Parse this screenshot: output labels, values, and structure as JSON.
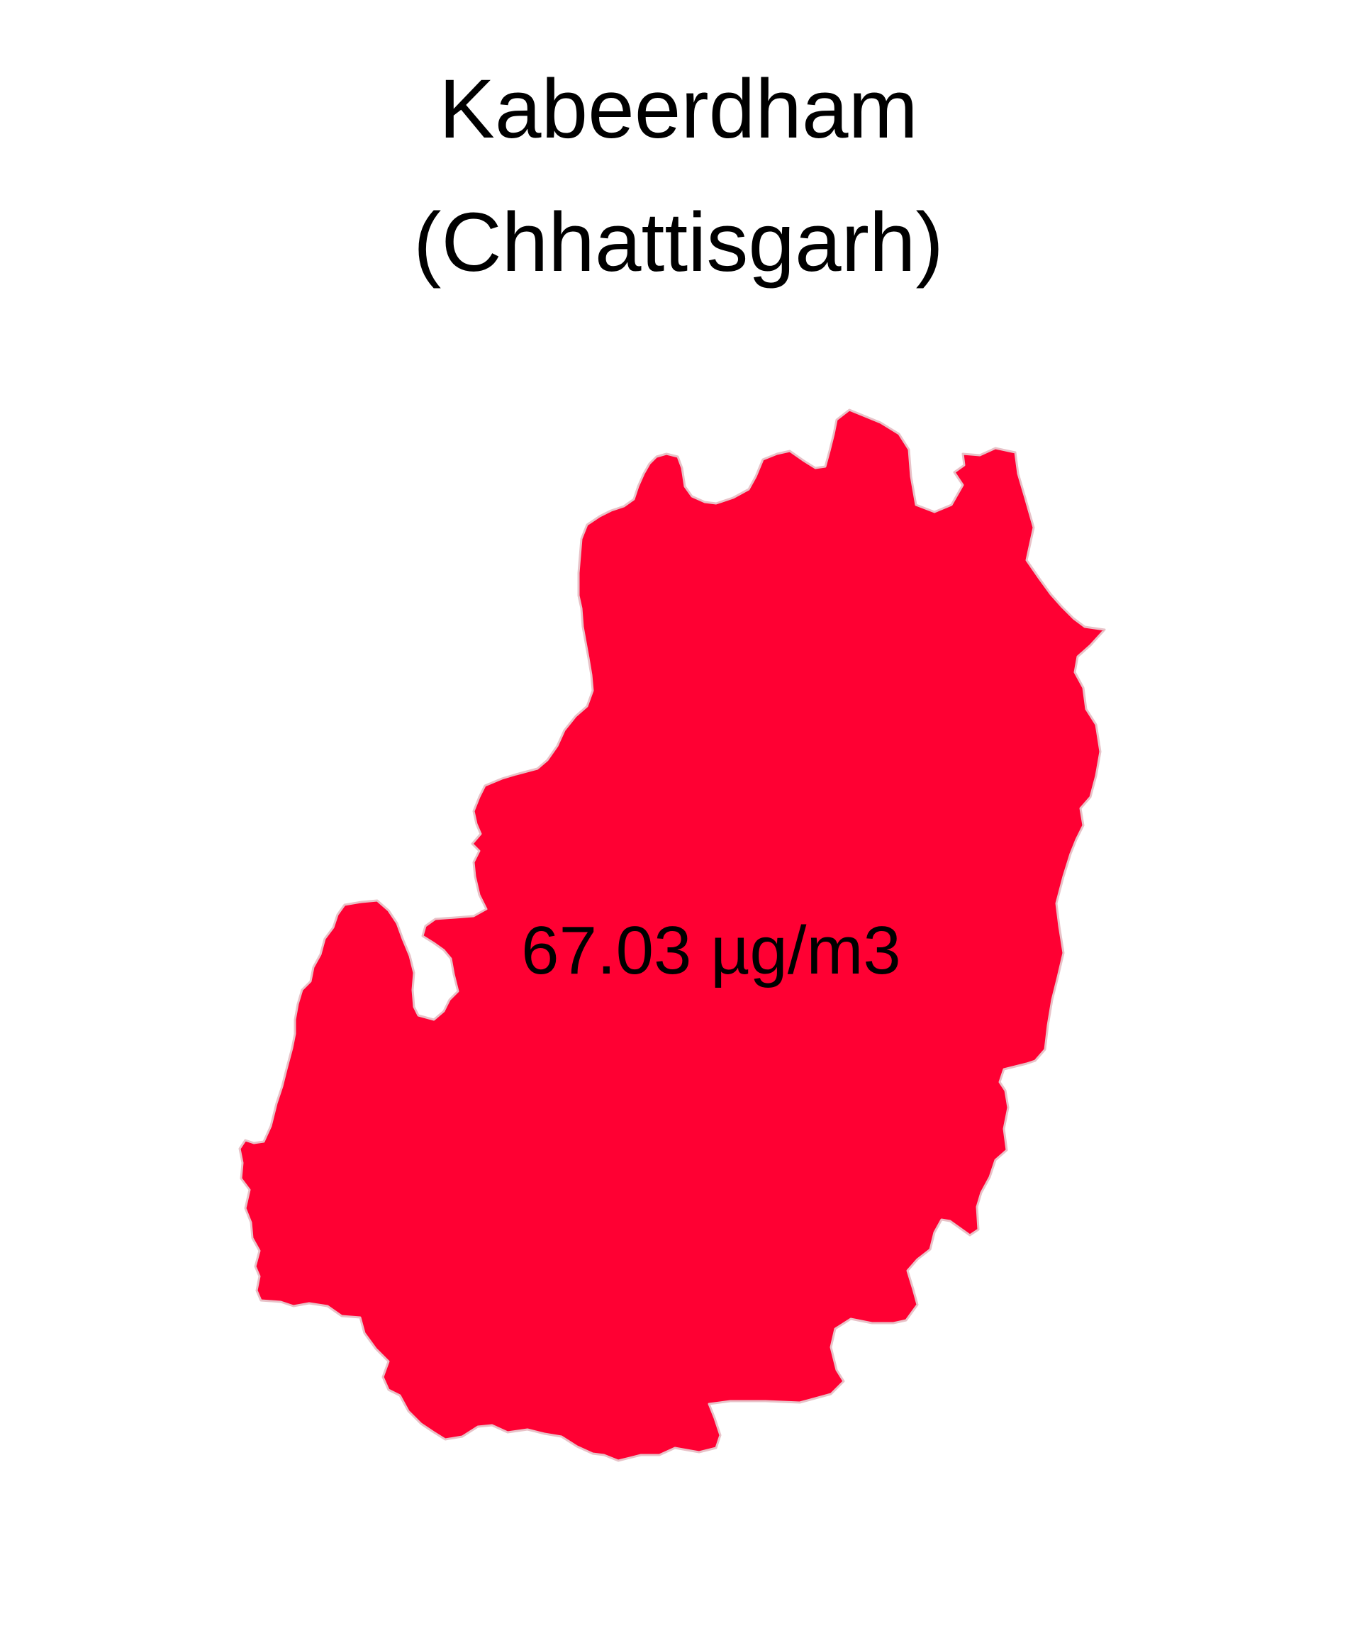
{
  "map": {
    "title_line1": "Kabeerdham",
    "title_line2": "(Chhattisgarh)",
    "region_value_label": "67.03 µg/m3",
    "fill_color": "#ff0033",
    "label_color": "#000000",
    "background_color": "#ffffff"
  }
}
